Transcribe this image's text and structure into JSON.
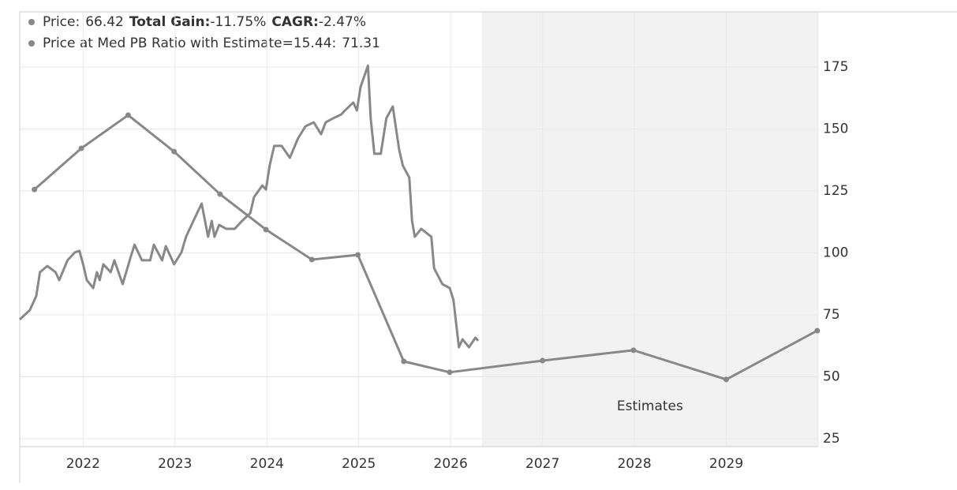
{
  "chart_data": {
    "type": "line",
    "xlim": [
      2021.31,
      2030.0
    ],
    "xticks": [
      2022,
      2023,
      2024,
      2025,
      2026,
      2027,
      2028,
      2029
    ],
    "ylim": [
      21.8,
      197.3
    ],
    "yticks": [
      25,
      50,
      75,
      100,
      125,
      150,
      175
    ],
    "grid": true,
    "shaded_region": {
      "x": [
        2026.34,
        2030.0
      ],
      "label": "Estimates"
    },
    "series": [
      {
        "name": "Price:",
        "legend_value": 66.42,
        "legend_stats": [
          {
            "label": "Total Gain:",
            "value": "-11.75%"
          },
          {
            "label": "CAGR:",
            "value": "-2.47%"
          }
        ],
        "color": "#888888",
        "markers": false,
        "x": [
          2021.31,
          2021.42,
          2021.49,
          2021.53,
          2021.61,
          2021.7,
          2021.74,
          2021.83,
          2021.91,
          2021.96,
          2022.0,
          2022.04,
          2022.11,
          2022.15,
          2022.18,
          2022.22,
          2022.3,
          2022.34,
          2022.43,
          2022.52,
          2022.56,
          2022.64,
          2022.73,
          2022.77,
          2022.86,
          2022.9,
          2022.99,
          2023.07,
          2023.12,
          2023.2,
          2023.29,
          2023.36,
          2023.4,
          2023.43,
          2023.48,
          2023.56,
          2023.65,
          2023.73,
          2023.82,
          2023.86,
          2023.95,
          2023.99,
          2024.03,
          2024.08,
          2024.16,
          2024.25,
          2024.34,
          2024.42,
          2024.51,
          2024.59,
          2024.64,
          2024.72,
          2024.81,
          2024.85,
          2024.94,
          2024.98,
          2025.02,
          2025.1,
          2025.13,
          2025.17,
          2025.24,
          2025.3,
          2025.37,
          2025.44,
          2025.48,
          2025.55,
          2025.58,
          2025.61,
          2025.68,
          2025.79,
          2025.82,
          2025.91,
          2025.99,
          2026.03,
          2026.06,
          2026.09,
          2026.13,
          2026.2,
          2026.27,
          2026.3
        ],
        "values": [
          73.1,
          76.9,
          82.6,
          92.2,
          94.7,
          92.2,
          89.0,
          97.0,
          100.2,
          100.8,
          95.4,
          89.0,
          85.8,
          92.2,
          89.0,
          95.4,
          92.2,
          97.0,
          87.4,
          98.6,
          103.3,
          97.0,
          97.0,
          103.3,
          97.0,
          102.7,
          95.4,
          100.2,
          106.5,
          112.9,
          119.9,
          106.5,
          112.9,
          106.5,
          111.3,
          109.7,
          109.7,
          112.9,
          116.1,
          122.5,
          127.2,
          125.6,
          135.2,
          143.2,
          143.2,
          138.4,
          146.3,
          151.1,
          152.7,
          147.9,
          152.7,
          154.3,
          155.9,
          157.5,
          160.7,
          157.5,
          167.0,
          175.6,
          154.3,
          140.0,
          140.0,
          154.3,
          159.1,
          141.6,
          135.2,
          130.4,
          112.9,
          106.5,
          109.7,
          106.5,
          93.8,
          87.4,
          85.8,
          81.1,
          71.5,
          61.9,
          65.1,
          61.9,
          65.8,
          64.5
        ]
      },
      {
        "name": "Price at Med PB Ratio with Estimate=15.44:",
        "legend_value": 71.31,
        "color": "#888888",
        "markers": true,
        "x": [
          2021.47,
          2021.98,
          2022.49,
          2022.99,
          2023.49,
          2023.99,
          2024.49,
          2024.99,
          2025.49,
          2025.99,
          2027.0,
          2027.99,
          2029.0,
          2029.99
        ],
        "values": [
          125.6,
          142.2,
          155.6,
          140.9,
          123.7,
          109.4,
          97.3,
          99.2,
          56.2,
          51.8,
          56.5,
          60.7,
          48.9,
          68.6
        ]
      }
    ]
  }
}
